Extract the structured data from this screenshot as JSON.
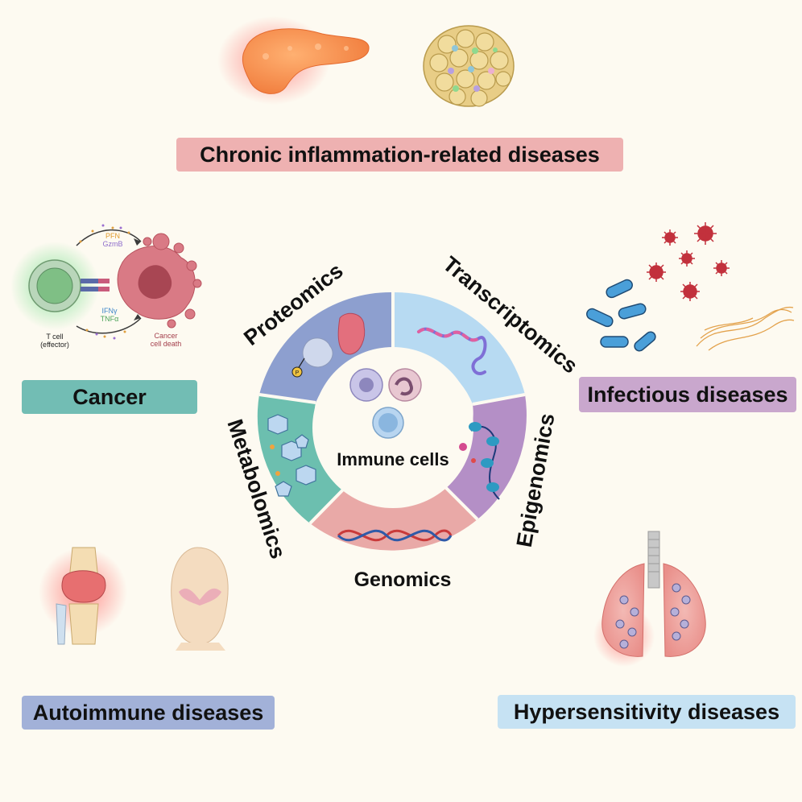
{
  "center": {
    "title": "Immune cells"
  },
  "omics": {
    "proteomics": "Proteomics",
    "transcriptomics": "Transcriptomics",
    "epigenomics": "Epigenomics",
    "genomics": "Genomics",
    "metabolomics": "Metabolomics"
  },
  "diseases": {
    "chronic": "Chronic inflammation-related diseases",
    "cancer": "Cancer",
    "infectious": "Infectious diseases",
    "autoimmune": "Autoimmune diseases",
    "hypersensitivity": "Hypersensitivity diseases"
  },
  "cancer_illustration": {
    "pfn": "PFN",
    "gzmb": "GzmB",
    "ifng": "IFNγ",
    "tnfa": "TNFα",
    "tcell_line1": "T cell",
    "tcell_line2": "(effector)",
    "death_line1": "Cancer",
    "death_line2": "cell death"
  },
  "colors": {
    "background": "#fdfaf1",
    "proteomics": "#8d9fcf",
    "transcriptomics": "#b7daf2",
    "epigenomics": "#b48fc6",
    "genomics": "#e9a9a7",
    "metabolomics": "#6cbfaf"
  }
}
